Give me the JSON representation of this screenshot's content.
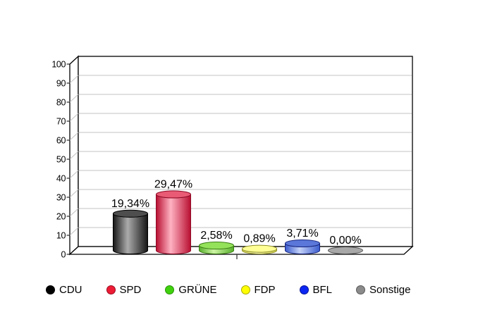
{
  "chart_data": {
    "type": "bar",
    "style": "3d-cylinder",
    "title": "",
    "xlabel": "",
    "ylabel": "",
    "ylim": [
      0,
      100
    ],
    "ytick_step": 10,
    "ytick_labels": [
      "0",
      "10",
      "20",
      "30",
      "40",
      "50",
      "60",
      "70",
      "80",
      "90",
      "100"
    ],
    "grid": true,
    "legend_position": "bottom",
    "categories": [
      "CDU",
      "SPD",
      "GRÜNE",
      "FDP",
      "BFL",
      "Sonstige"
    ],
    "values": [
      19.34,
      29.47,
      2.58,
      0.89,
      3.71,
      0.0
    ],
    "value_labels": [
      "19,34%",
      "29,47%",
      "2,58%",
      "0,89%",
      "3,71%",
      "0,00%"
    ],
    "colors": {
      "background": "#ffffff",
      "wall_stroke": "#000000",
      "gridline": "#c3c3c3",
      "label_text": "#000000"
    },
    "parties": [
      {
        "label": "CDU",
        "value": 19.34,
        "value_label": "19,34%",
        "colors": {
          "legend": "#000000",
          "legend_edge": "#000000",
          "dark": "#151515",
          "light": "#ababab",
          "top": "#4e4e4e",
          "outline": "#000000"
        }
      },
      {
        "label": "SPD",
        "value": 29.47,
        "value_label": "29,47%",
        "colors": {
          "legend": "#ed1c35",
          "legend_edge": "#9b0c20",
          "dark": "#b80f31",
          "light": "#ffb2c2",
          "top": "#e95a74",
          "outline": "#8e0a26"
        }
      },
      {
        "label": "GRÜNE",
        "value": 2.58,
        "value_label": "2,58%",
        "colors": {
          "legend": "#3fd10d",
          "legend_edge": "#2a9408",
          "dark": "#57b02a",
          "light": "#cdf4a4",
          "top": "#94e25a",
          "outline": "#3a7d14"
        }
      },
      {
        "label": "FDP",
        "value": 0.89,
        "value_label": "0,89%",
        "colors": {
          "legend": "#ffff00",
          "legend_edge": "#a8a800",
          "dark": "#d6d64a",
          "light": "#ffffc4",
          "top": "#ffff96",
          "outline": "#8f8f2a"
        }
      },
      {
        "label": "BFL",
        "value": 3.71,
        "value_label": "3,71%",
        "colors": {
          "legend": "#0b26f2",
          "legend_edge": "#081697",
          "dark": "#3a5bce",
          "light": "#c4d2f8",
          "top": "#5a77d9",
          "outline": "#18267f"
        }
      },
      {
        "label": "Sonstige",
        "value": 0.0,
        "value_label": "0,00%",
        "colors": {
          "legend": "#8b8b8b",
          "legend_edge": "#5a5a5a",
          "dark": "#9e9e9e",
          "light": "#b8b8b8",
          "top": "#a8a8a8",
          "outline": "#565656"
        }
      }
    ]
  }
}
